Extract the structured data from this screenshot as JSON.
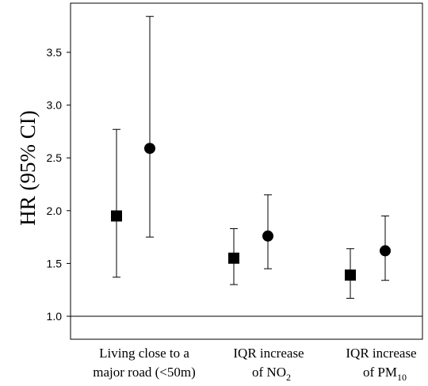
{
  "chart_data": {
    "type": "scatter",
    "ylabel": "HR (95% CI)",
    "ylim": [
      0.78,
      3.98
    ],
    "yticks": [
      "1.0",
      "1.5",
      "2.0",
      "2.5",
      "3.0",
      "3.5"
    ],
    "reference_line": 1.0,
    "categories": [
      {
        "lines": [
          "Living close to a",
          "major road (<50m)"
        ]
      },
      {
        "lines": [
          "IQR increase",
          "of NO",
          "2"
        ]
      },
      {
        "lines": [
          "IQR increase",
          "of PM",
          "10"
        ]
      }
    ],
    "series": [
      {
        "marker": "square",
        "points": [
          {
            "estimate": 1.95,
            "lower": 1.37,
            "upper": 2.77
          },
          {
            "estimate": 1.55,
            "lower": 1.3,
            "upper": 1.83
          },
          {
            "estimate": 1.39,
            "lower": 1.17,
            "upper": 1.64
          }
        ]
      },
      {
        "marker": "circle",
        "points": [
          {
            "estimate": 2.59,
            "lower": 1.75,
            "upper": 3.84
          },
          {
            "estimate": 1.76,
            "lower": 1.45,
            "upper": 2.15
          },
          {
            "estimate": 1.62,
            "lower": 1.34,
            "upper": 1.95
          }
        ]
      }
    ]
  }
}
